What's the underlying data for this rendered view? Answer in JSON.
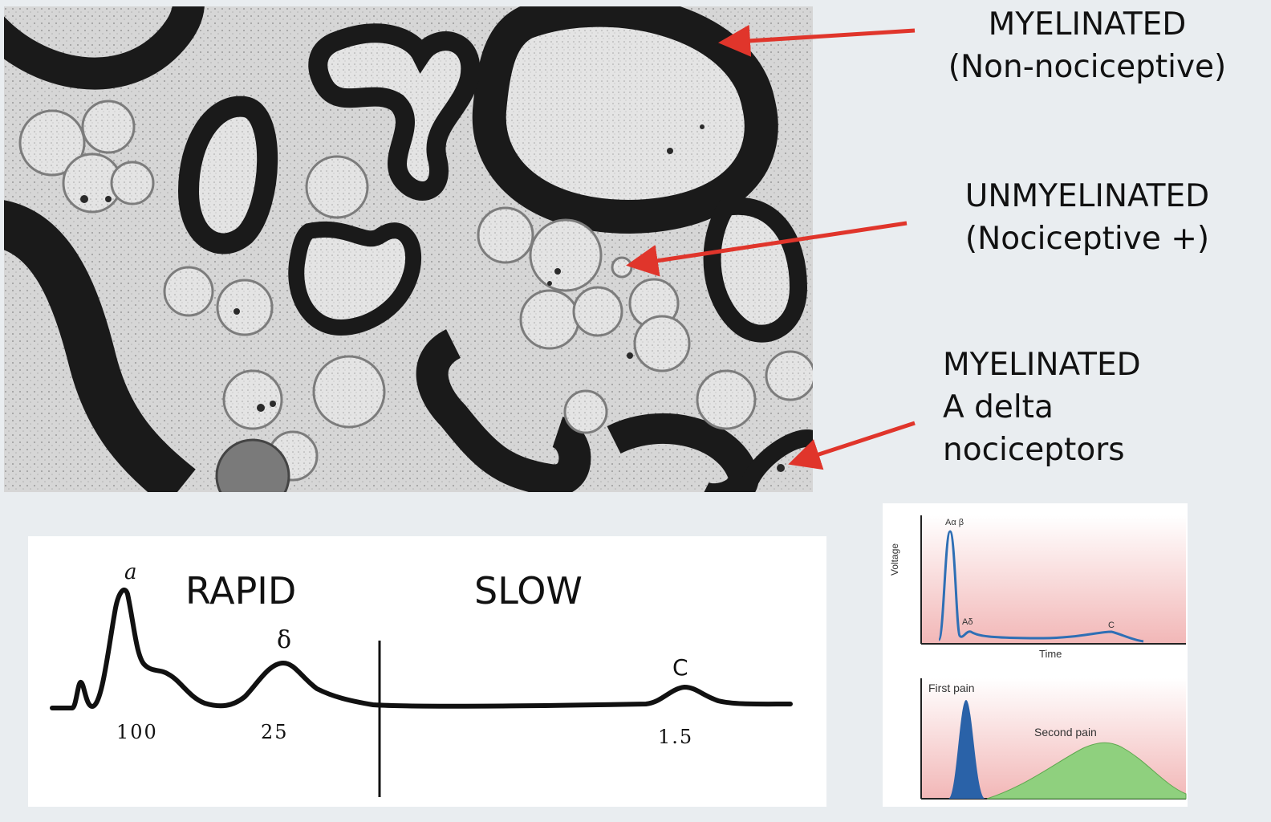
{
  "labels": {
    "myelinated_top": {
      "line1": "MYELINATED",
      "line2": "(Non-nociceptive)"
    },
    "unmyelinated": {
      "line1": "UNMYELINATED",
      "line2": "(Nociceptive +)"
    },
    "myelinated_a_delta": {
      "line1": "MYELINATED",
      "line2": "A delta",
      "line3": "nociceptors"
    }
  },
  "compound_action_potential": {
    "rapid_label": "RAPID",
    "slow_label": "SLOW",
    "peak_alpha": "a",
    "peak_delta": "δ",
    "peak_c": "C",
    "velocity_alpha": "100",
    "velocity_delta": "25",
    "velocity_c": "1.5"
  },
  "inset": {
    "peak_label_ab": "Aα β",
    "peak_label_ad": "Aδ",
    "peak_label_c": "C",
    "y_axis": "Voltage",
    "x_axis": "Time",
    "first_pain": "First pain",
    "second_pain": "Second pain"
  },
  "colors": {
    "arrow": "#e0352b",
    "background": "#e9edf0",
    "trace_blue": "#2e6fb5",
    "first_pain_fill": "#2a62a8",
    "second_pain_fill": "#8fd07e",
    "panel_pink": "#f2b7b7"
  }
}
